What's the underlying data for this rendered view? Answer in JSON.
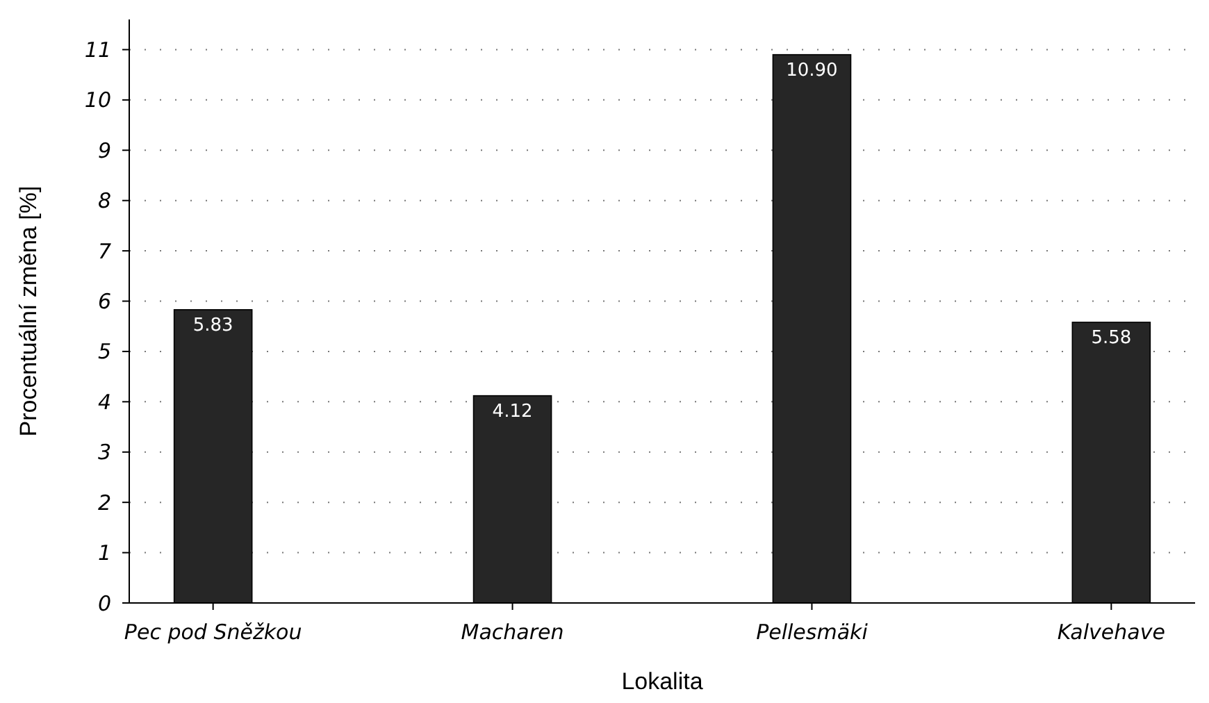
{
  "chart_data": {
    "type": "bar",
    "xlabel": "Lokalita",
    "ylabel": "Procentuální změna [%]",
    "categories": [
      "Pec pod Sněžkou",
      "Macharen",
      "Pellesmäki",
      "Kalvehave"
    ],
    "values": [
      5.83,
      4.12,
      10.9,
      5.58
    ],
    "value_labels": [
      "5.83",
      "4.12",
      "10.90",
      "5.58"
    ],
    "color": "#262626",
    "ylim": [
      0,
      11.6
    ],
    "yticks": [
      0,
      1,
      2,
      3,
      4,
      5,
      6,
      7,
      8,
      9,
      10,
      11
    ],
    "grid": "y"
  }
}
